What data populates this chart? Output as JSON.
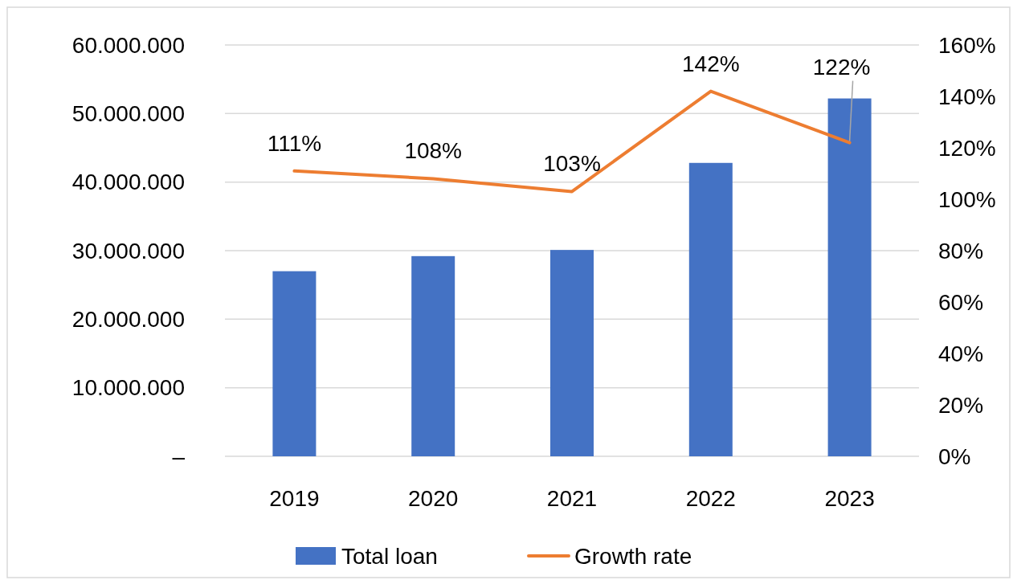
{
  "chart_data": {
    "type": "bar",
    "categories": [
      "2019",
      "2020",
      "2021",
      "2022",
      "2023"
    ],
    "series": [
      {
        "name": "Total loan",
        "color": "#4472c4",
        "values": [
          27000000,
          29200000,
          30100000,
          42800000,
          52200000
        ]
      },
      {
        "name": "Growth rate",
        "type": "line",
        "axis": "y2",
        "color": "#ed7d31",
        "values": [
          111,
          108,
          103,
          142,
          122
        ],
        "value_labels": [
          "111%",
          "108%",
          "103%",
          "142%",
          "122%"
        ]
      }
    ],
    "ylim": [
      0,
      60000000
    ],
    "yticks": [
      {
        "value": 0,
        "label": "–"
      },
      {
        "value": 10000000,
        "label": "10.000.000"
      },
      {
        "value": 20000000,
        "label": "20.000.000"
      },
      {
        "value": 30000000,
        "label": "30.000.000"
      },
      {
        "value": 40000000,
        "label": "40.000.000"
      },
      {
        "value": 50000000,
        "label": "50.000.000"
      },
      {
        "value": 60000000,
        "label": "60.000.000"
      }
    ],
    "y2lim": [
      0,
      160
    ],
    "y2ticks": [
      {
        "value": 0,
        "label": "0%"
      },
      {
        "value": 20,
        "label": "20%"
      },
      {
        "value": 40,
        "label": "40%"
      },
      {
        "value": 60,
        "label": "60%"
      },
      {
        "value": 80,
        "label": "80%"
      },
      {
        "value": 100,
        "label": "100%"
      },
      {
        "value": 120,
        "label": "120%"
      },
      {
        "value": 140,
        "label": "140%"
      },
      {
        "value": 160,
        "label": "160%"
      }
    ],
    "grid": "y",
    "legend": "bottom",
    "line_style": "solid",
    "marker": "none"
  }
}
